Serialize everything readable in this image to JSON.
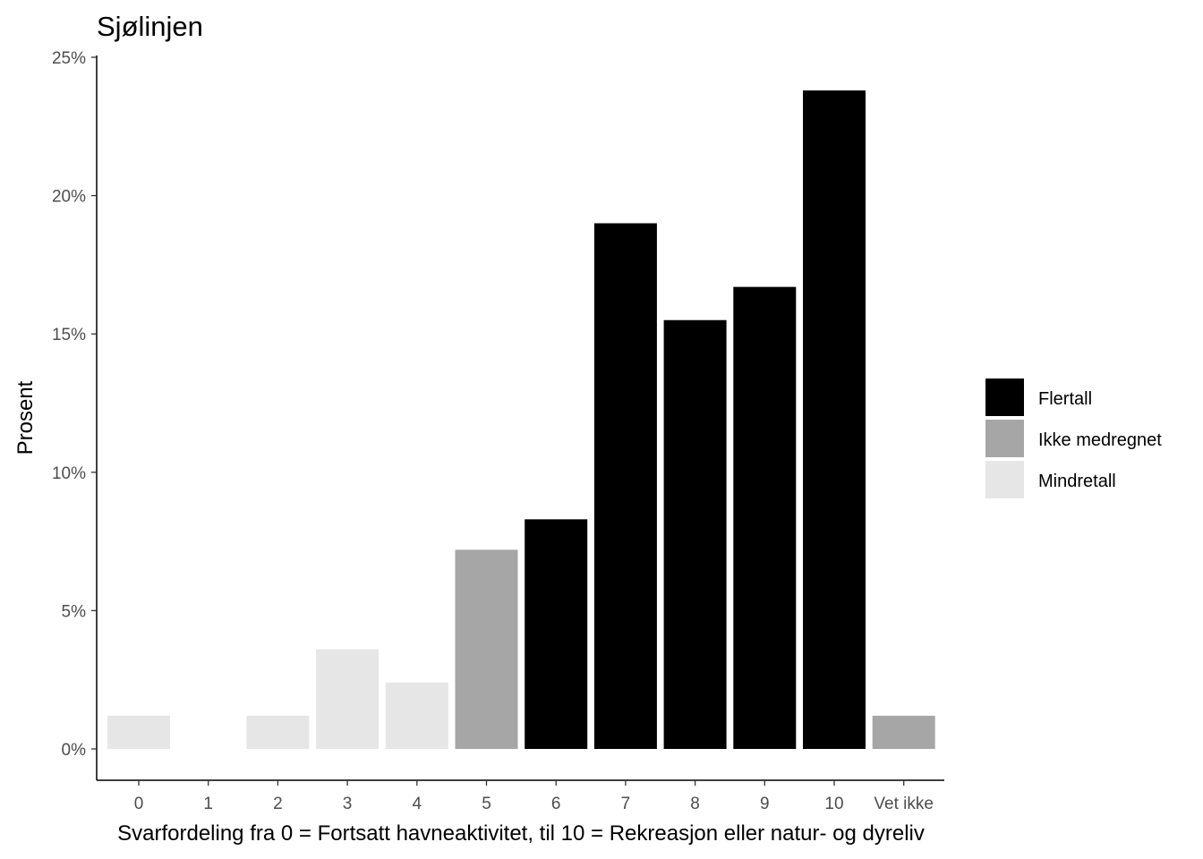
{
  "chart_data": {
    "type": "bar",
    "title": "Sjølinjen",
    "xlabel": "Svarfordeling fra 0 = Fortsatt havneaktivitet, til 10 = Rekreasjon eller natur- og dyreliv",
    "ylabel": "Prosent",
    "ylim": [
      0,
      25
    ],
    "yticks": [
      0,
      5,
      10,
      15,
      20,
      25
    ],
    "ytick_labels": [
      "0%",
      "5%",
      "10%",
      "15%",
      "20%",
      "25%"
    ],
    "grid": false,
    "legend_position": "right",
    "categories": [
      "0",
      "1",
      "2",
      "3",
      "4",
      "5",
      "6",
      "7",
      "8",
      "9",
      "10",
      "Vet ikke"
    ],
    "values": [
      1.2,
      0,
      1.2,
      3.6,
      2.4,
      7.2,
      8.3,
      19.0,
      15.5,
      16.7,
      23.8,
      1.2
    ],
    "groups": [
      "Mindretall",
      "Mindretall",
      "Mindretall",
      "Mindretall",
      "Mindretall",
      "Ikke medregnet",
      "Flertall",
      "Flertall",
      "Flertall",
      "Flertall",
      "Flertall",
      "Ikke medregnet"
    ],
    "legend": [
      {
        "name": "Flertall",
        "color": "#000000"
      },
      {
        "name": "Ikke medregnet",
        "color": "#a6a6a6"
      },
      {
        "name": "Mindretall",
        "color": "#e6e6e6"
      }
    ]
  }
}
